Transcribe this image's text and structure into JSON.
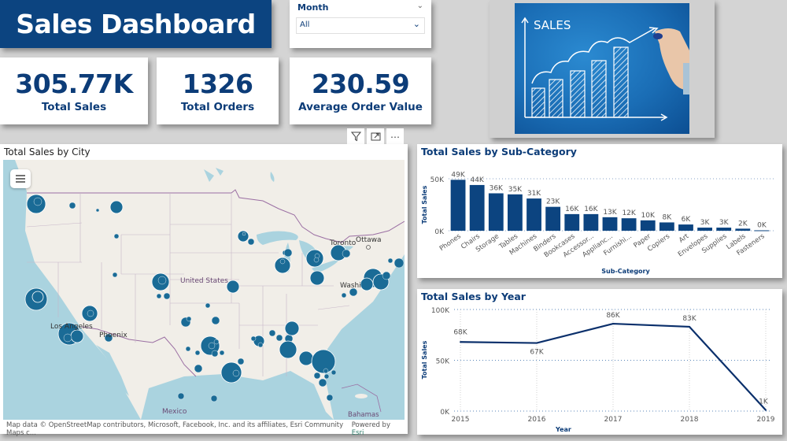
{
  "header": {
    "title": "Sales Dashboard"
  },
  "slicer": {
    "label": "Month",
    "selected": "All"
  },
  "kpis": [
    {
      "value": "305.77K",
      "label": "Total Sales"
    },
    {
      "value": "1326",
      "label": "Total Orders"
    },
    {
      "value": "230.59",
      "label": "Average Order Value"
    }
  ],
  "hero_image": {
    "text": "SALES",
    "description": "hand drawing a rising sales bar chart on blue board"
  },
  "visual_tools": [
    "filter-icon",
    "focus-mode-icon",
    "more-options-icon"
  ],
  "map": {
    "title": "Total Sales by City",
    "labels": [
      "Ottawa",
      "Toronto",
      "United States",
      "Washi",
      "Phoenix",
      "Los Angeles",
      "Mexico",
      "Bahamas"
    ],
    "attribution": "Map data © OpenStreetMap contributors, Microsoft, Facebook, Inc. and its affiliates, Esri Community Maps c...",
    "powered_by": "Powered by",
    "powered_by_brand": "Esri",
    "bubble_color": "#1a6b96"
  },
  "colors": {
    "primary": "#0c4480",
    "bar": "#0c4480",
    "line": "#0a2f6b",
    "background": "#d4d4d4"
  },
  "chart_data": [
    {
      "type": "bar",
      "title": "Total Sales by Sub-Category",
      "xlabel": "Sub-Category",
      "ylabel": "Total Sales",
      "categories": [
        "Phones",
        "Chairs",
        "Storage",
        "Tables",
        "Machines",
        "Binders",
        "Bookcases",
        "Accessor...",
        "Applianc...",
        "Furnishi...",
        "Paper",
        "Copiers",
        "Art",
        "Envelopes",
        "Supplies",
        "Labels",
        "Fasteners"
      ],
      "values": [
        49,
        44,
        36,
        35,
        31,
        23,
        16,
        16,
        13,
        12,
        10,
        8,
        6,
        3,
        3,
        2,
        0.4
      ],
      "data_labels": [
        "49K",
        "44K",
        "36K",
        "35K",
        "31K",
        "23K",
        "16K",
        "16K",
        "13K",
        "12K",
        "10K",
        "8K",
        "6K",
        "3K",
        "3K",
        "2K",
        "0K"
      ],
      "yticks": [
        "0K",
        "50K"
      ],
      "ylim": [
        0,
        50
      ],
      "grid": true
    },
    {
      "type": "line",
      "title": "Total Sales by Year",
      "xlabel": "Year",
      "ylabel": "Total Sales",
      "x": [
        "2015",
        "2016",
        "2017",
        "2018",
        "2019"
      ],
      "values": [
        68,
        67,
        86,
        83,
        1
      ],
      "data_labels": [
        "68K",
        "67K",
        "86K",
        "83K",
        "1K"
      ],
      "yticks": [
        "0K",
        "50K",
        "100K"
      ],
      "ylim": [
        0,
        100
      ],
      "grid": true
    }
  ]
}
